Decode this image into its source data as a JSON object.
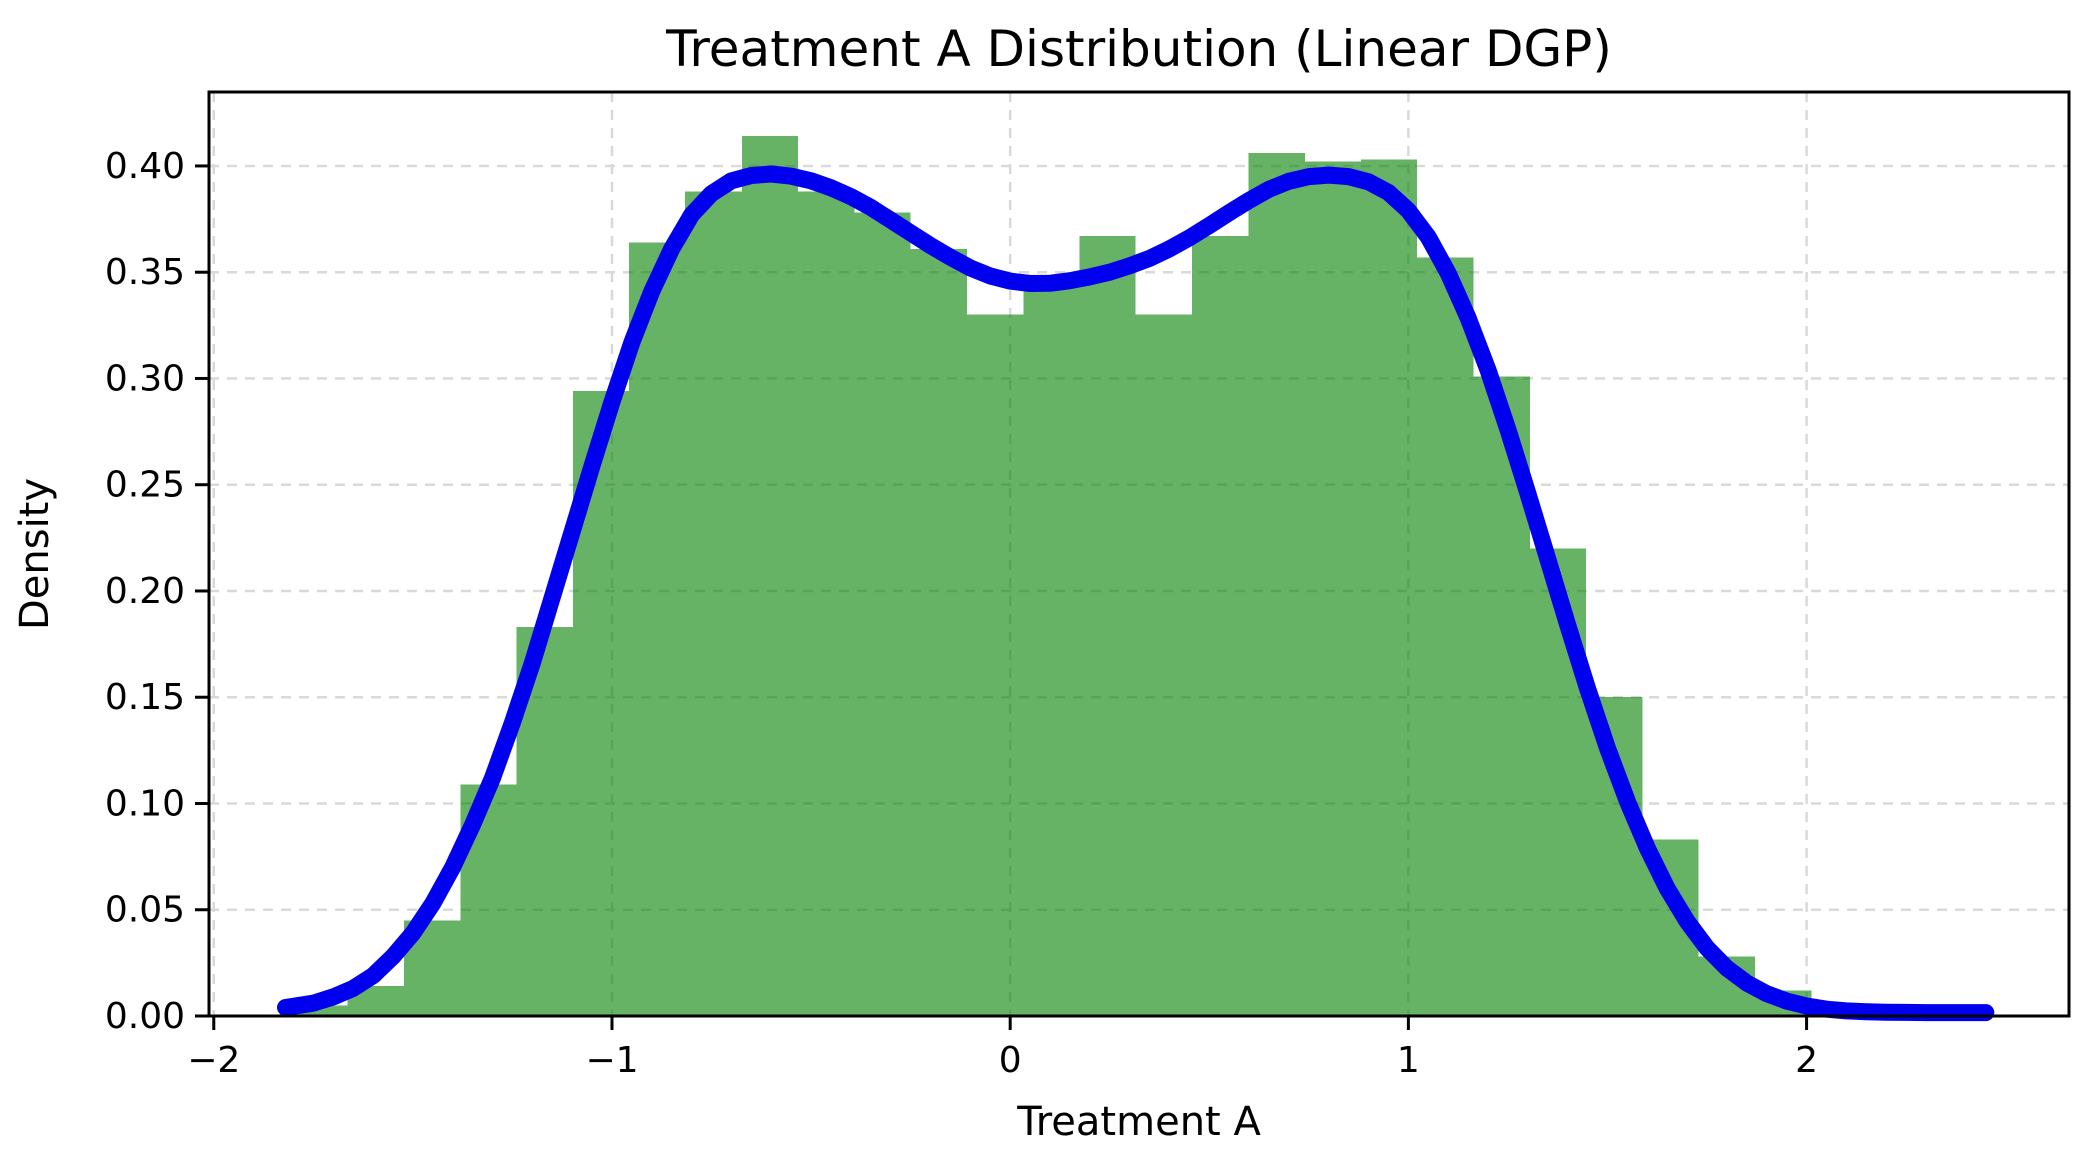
{
  "title": "Treatment A Distribution (Linear DGP)",
  "x_axis": {
    "label": "Treatment A",
    "tick_labels": [
      "−2",
      "−1",
      "0",
      "1",
      "2"
    ],
    "tick_values": [
      -2,
      -1,
      0,
      1,
      2
    ]
  },
  "y_axis": {
    "label": "Density",
    "tick_labels": [
      "0.00",
      "0.05",
      "0.10",
      "0.15",
      "0.20",
      "0.25",
      "0.30",
      "0.35",
      "0.40"
    ],
    "tick_values": [
      0.0,
      0.05,
      0.1,
      0.15,
      0.2,
      0.25,
      0.3,
      0.35,
      0.4
    ]
  },
  "colors": {
    "histogram_fill": "#008000",
    "histogram_opacity": 0.6,
    "kde_line": "#0000ee",
    "grid_line": "#d9d9d9",
    "spine": "#000000",
    "text": "#000000",
    "background": "#ffffff"
  },
  "chart_data": {
    "type": "histogram+kde",
    "title": "Treatment A Distribution (Linear DGP)",
    "xlabel": "Treatment A",
    "ylabel": "Density",
    "xlim": [
      -2.012,
      2.659
    ],
    "ylim": [
      0,
      0.4348
    ],
    "grid": true,
    "grid_style": "dashed",
    "legend_position": "none",
    "histogram": {
      "bin_edges": [
        -1.805,
        -1.664,
        -1.522,
        -1.381,
        -1.24,
        -1.098,
        -0.957,
        -0.816,
        -0.674,
        -0.533,
        -0.391,
        -0.25,
        -0.109,
        0.033,
        0.174,
        0.315,
        0.457,
        0.598,
        0.74,
        0.881,
        1.022,
        1.164,
        1.305,
        1.446,
        1.588,
        1.729,
        1.87,
        2.012,
        2.153
      ],
      "densities": [
        0.005,
        0.014,
        0.045,
        0.109,
        0.183,
        0.294,
        0.364,
        0.388,
        0.414,
        0.388,
        0.378,
        0.361,
        0.33,
        0.344,
        0.367,
        0.33,
        0.367,
        0.406,
        0.402,
        0.403,
        0.357,
        0.301,
        0.22,
        0.15,
        0.083,
        0.028,
        0.012,
        0.002
      ]
    },
    "kde": {
      "x": [
        -1.82,
        -1.75,
        -1.7,
        -1.65,
        -1.6,
        -1.55,
        -1.5,
        -1.45,
        -1.4,
        -1.35,
        -1.3,
        -1.25,
        -1.2,
        -1.15,
        -1.1,
        -1.05,
        -1.0,
        -0.95,
        -0.9,
        -0.85,
        -0.8,
        -0.75,
        -0.7,
        -0.65,
        -0.6,
        -0.55,
        -0.5,
        -0.45,
        -0.4,
        -0.35,
        -0.3,
        -0.25,
        -0.2,
        -0.15,
        -0.1,
        -0.05,
        0.0,
        0.05,
        0.1,
        0.15,
        0.2,
        0.25,
        0.3,
        0.35,
        0.4,
        0.45,
        0.5,
        0.55,
        0.6,
        0.65,
        0.7,
        0.75,
        0.8,
        0.85,
        0.9,
        0.95,
        1.0,
        1.05,
        1.1,
        1.15,
        1.2,
        1.25,
        1.3,
        1.35,
        1.4,
        1.45,
        1.5,
        1.55,
        1.6,
        1.65,
        1.7,
        1.75,
        1.8,
        1.85,
        1.9,
        1.95,
        2.0,
        2.05,
        2.1,
        2.15,
        2.2,
        2.25,
        2.3,
        2.35,
        2.4,
        2.45
      ],
      "y": [
        0.004,
        0.006,
        0.009,
        0.013,
        0.019,
        0.028,
        0.039,
        0.053,
        0.07,
        0.09,
        0.112,
        0.138,
        0.166,
        0.197,
        0.228,
        0.259,
        0.289,
        0.317,
        0.341,
        0.361,
        0.377,
        0.387,
        0.393,
        0.3955,
        0.3962,
        0.3952,
        0.393,
        0.3897,
        0.3856,
        0.3805,
        0.3745,
        0.3685,
        0.3625,
        0.357,
        0.352,
        0.3482,
        0.3458,
        0.3447,
        0.3448,
        0.346,
        0.3478,
        0.35,
        0.353,
        0.3565,
        0.361,
        0.3662,
        0.372,
        0.378,
        0.3838,
        0.389,
        0.3928,
        0.395,
        0.3957,
        0.395,
        0.3925,
        0.3875,
        0.379,
        0.3665,
        0.3495,
        0.3285,
        0.304,
        0.276,
        0.246,
        0.215,
        0.184,
        0.154,
        0.126,
        0.101,
        0.079,
        0.06,
        0.0445,
        0.032,
        0.0225,
        0.0155,
        0.0105,
        0.007,
        0.0047,
        0.0032,
        0.0024,
        0.002,
        0.0018,
        0.0017,
        0.0016,
        0.0016,
        0.0016,
        0.0016
      ]
    }
  }
}
